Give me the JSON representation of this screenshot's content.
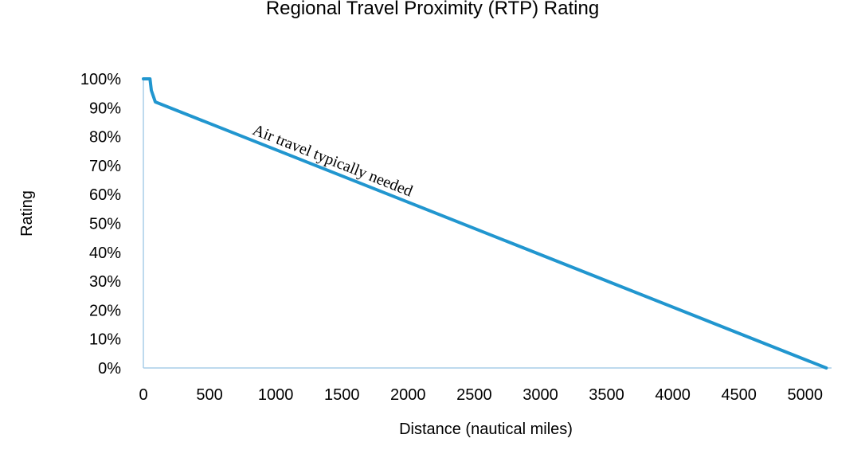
{
  "chart_data": {
    "type": "line",
    "title": "Regional Travel Proximity (RTP) Rating",
    "xlabel": "Distance (nautical miles)",
    "ylabel": "Rating",
    "xlim": [
      0,
      5200
    ],
    "ylim": [
      0,
      100
    ],
    "x_ticks": [
      0,
      500,
      1000,
      1500,
      2000,
      2500,
      3000,
      3500,
      4000,
      4500,
      5000
    ],
    "y_ticks": [
      0,
      10,
      20,
      30,
      40,
      50,
      60,
      70,
      80,
      90,
      100
    ],
    "x_tick_labels": [
      "0",
      "500",
      "1000",
      "1500",
      "2000",
      "2500",
      "3000",
      "3500",
      "4000",
      "4500",
      "5000"
    ],
    "y_tick_labels": [
      "0%",
      "10%",
      "20%",
      "30%",
      "40%",
      "50%",
      "60%",
      "70%",
      "80%",
      "90%",
      "100%"
    ],
    "grid": false,
    "series": [
      {
        "color": "#2196cf",
        "x": [
          0,
          50,
          60,
          90,
          5160
        ],
        "y": [
          100,
          100,
          96,
          92,
          0
        ]
      }
    ],
    "annotations": [
      {
        "text": "Air travel typically needed"
      }
    ]
  }
}
